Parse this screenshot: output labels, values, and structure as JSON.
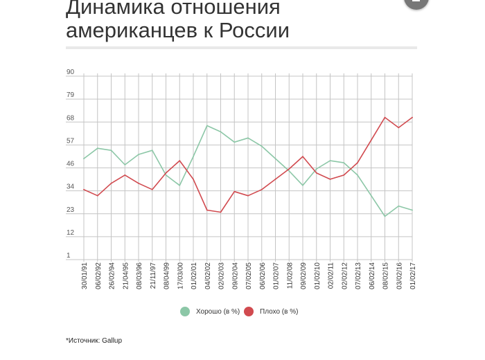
{
  "title_line1": "Динамика отношения",
  "title_line2": "американцев к России",
  "source": "*Источник: Gallup",
  "colors": {
    "good": "#8cc7a7",
    "bad": "#d14a4f",
    "grid": "#c4c4c4",
    "rule": "#e9e9e9",
    "corner_button": "#777777"
  },
  "icons": {
    "corner_button": "minimize-icon"
  },
  "chart_data": {
    "type": "line",
    "title": "Динамика отношения американцев к России",
    "xlabel": "",
    "ylabel": "",
    "ylim": [
      1,
      90
    ],
    "y_ticks": [
      "90",
      "79",
      "68",
      "57",
      "46",
      "34",
      "23",
      "12",
      "1"
    ],
    "grid": true,
    "legend_position": "bottom",
    "categories": [
      "30/01/91",
      "06/02/92",
      "26/02/94",
      "21/04/95",
      "08/03/96",
      "21/11/97",
      "08/04/99",
      "17/03/00",
      "01/02/01",
      "04/02/02",
      "02/02/03",
      "09/02/04",
      "07/02/05",
      "06/02/06",
      "01/02/07",
      "11/02/08",
      "09/02/09",
      "01/02/10",
      "02/02/11",
      "02/02/12",
      "07/02/13",
      "06/02/14",
      "08/02/15",
      "03/02/16",
      "01/02/17"
    ],
    "series": [
      {
        "name": "Хорошо (в %)",
        "color": "#8cc7a7",
        "values": [
          50,
          55,
          54,
          47,
          52,
          54,
          42,
          37,
          51,
          66,
          63,
          58,
          60,
          56,
          50,
          44,
          37,
          45,
          49,
          48,
          42,
          32,
          22,
          27,
          25
        ]
      },
      {
        "name": "Плохо (в %)",
        "color": "#d14a4f",
        "values": [
          35,
          32,
          38,
          42,
          38,
          35,
          43,
          49,
          40,
          25,
          24,
          34,
          32,
          35,
          40,
          45,
          51,
          43,
          40,
          42,
          48,
          59,
          70,
          65,
          70
        ]
      }
    ]
  }
}
